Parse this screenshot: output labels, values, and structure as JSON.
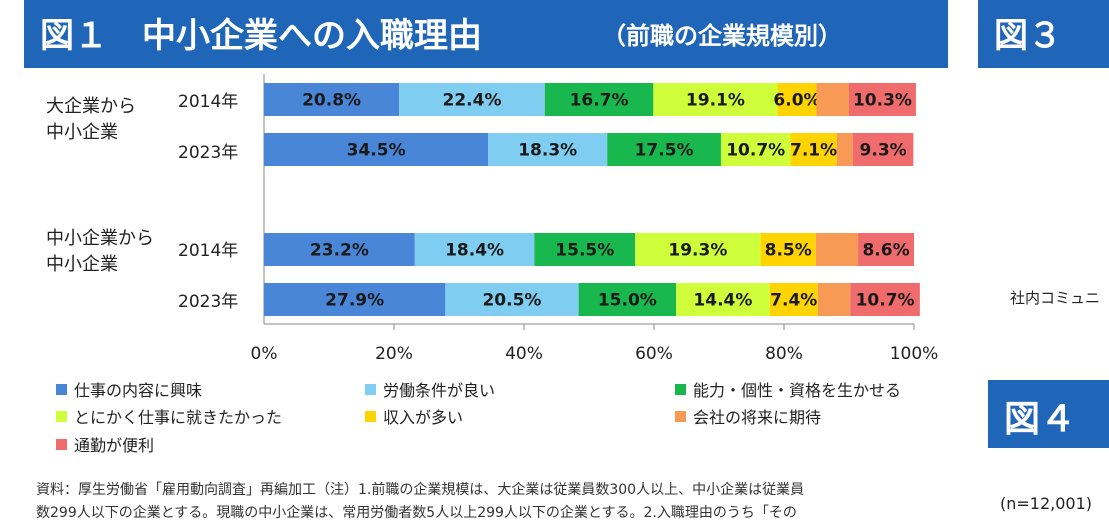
{
  "header": {
    "fig1_title": "図１　中小企業への入職理由",
    "fig1_subtitle": "（前職の企業規模別）",
    "fig3_title": "図３",
    "fig4_title": "図４"
  },
  "groups": [
    {
      "label": "大企業から\n中小企業",
      "years": [
        "2014年",
        "2023年"
      ]
    },
    {
      "label": "中小企業から\n中小企業",
      "years": [
        "2014年",
        "2023年"
      ]
    }
  ],
  "chart_data": {
    "type": "bar",
    "stacked": true,
    "orientation": "horizontal",
    "percent": true,
    "categories": [
      "大企業から中小企業 2014年",
      "大企業から中小企業 2023年",
      "中小企業から中小企業 2014年",
      "中小企業から中小企業 2023年"
    ],
    "series": [
      {
        "name": "仕事の内容に興味",
        "color": "#4a86d8",
        "values": [
          20.8,
          34.5,
          23.2,
          27.9
        ]
      },
      {
        "name": "労働条件が良い",
        "color": "#7fcdf0",
        "values": [
          22.4,
          18.3,
          18.4,
          20.5
        ]
      },
      {
        "name": "能力・個性・資格を生かせる",
        "color": "#19b84f",
        "values": [
          16.7,
          17.5,
          15.5,
          15.0
        ]
      },
      {
        "name": "とにかく仕事に就きたかった",
        "color": "#cfff3a",
        "values": [
          19.1,
          10.7,
          19.3,
          14.4
        ]
      },
      {
        "name": "収入が多い",
        "color": "#ffd400",
        "values": [
          6.0,
          7.1,
          8.5,
          7.4
        ]
      },
      {
        "name": "会社の将来に期待",
        "color": "#f79a55",
        "values": [
          5.0,
          2.5,
          6.5,
          5.0
        ]
      },
      {
        "name": "通勤が便利",
        "color": "#f06b6b",
        "values": [
          10.3,
          9.3,
          8.6,
          10.7
        ]
      }
    ],
    "shown_labels": [
      [
        "20.8%",
        "22.4%",
        "16.7%",
        "19.1%",
        "6.0%",
        "",
        "10.3%"
      ],
      [
        "34.5%",
        "18.3%",
        "17.5%",
        "10.7%",
        "7.1%",
        "",
        "9.3%"
      ],
      [
        "23.2%",
        "18.4%",
        "15.5%",
        "19.3%",
        "8.5%",
        "",
        "8.6%"
      ],
      [
        "27.9%",
        "20.5%",
        "15.0%",
        "14.4%",
        "7.4%",
        "",
        "10.7%"
      ]
    ],
    "xlim": [
      0,
      100
    ],
    "x_ticks": [
      "0%",
      "20%",
      "40%",
      "60%",
      "80%",
      "100%"
    ],
    "legend_position": "bottom"
  },
  "footnote": [
    "資料：厚生労働省「雇用動向調査」再編加工（注）1.前職の企業規模は、大企業は従業員数300人以上、中小企業は従業員",
    "数299人以下の企業とする。現職の中小企業は、常用労働者数5人以上299人以下の企業とする。2.入職理由のうち「その"
  ],
  "side": {
    "partial_label": "社内コミュニ",
    "n_label": "(n=12,001)"
  }
}
